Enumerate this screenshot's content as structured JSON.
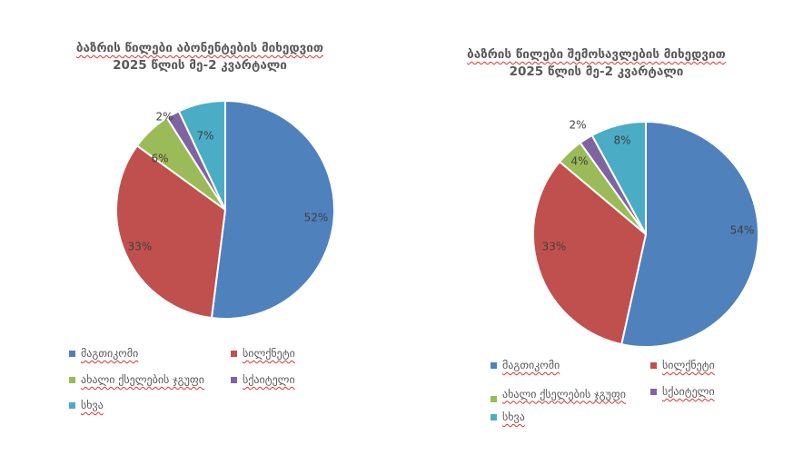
{
  "chart_data": [
    {
      "type": "pie",
      "title_lines": [
        "ბაზრის წილები აბონენტების მიხედვით",
        "2025 წლის მე-2 კვარტალი"
      ],
      "categories": [
        "მაგთიკომი",
        "სილქნეტი",
        "ახალი ქსელების ჯგუფი",
        "სქაიტელი",
        "სხვა"
      ],
      "values": [
        52,
        33,
        6,
        2,
        7
      ],
      "labels": [
        "52%",
        "33%",
        "6%",
        "2%",
        "7%"
      ],
      "colors": [
        "#4F81BD",
        "#C0504D",
        "#9BBB59",
        "#8064A2",
        "#4BACC6"
      ],
      "legend_position": "bottom"
    },
    {
      "type": "pie",
      "title_lines": [
        "ბაზრის წილები შემოსავლების მიხედვით",
        "2025 წლის მე-2 კვარტალი"
      ],
      "categories": [
        "მაგთიკომი",
        "სილქნეტი",
        "ახალი ქსელების ჯგუფი",
        "სქაიტელი",
        "სხვა"
      ],
      "values": [
        54,
        33,
        4,
        2,
        8
      ],
      "labels": [
        "54%",
        "33%",
        "4%",
        "2%",
        "8%"
      ],
      "colors": [
        "#4F81BD",
        "#C0504D",
        "#9BBB59",
        "#8064A2",
        "#4BACC6"
      ],
      "legend_position": "bottom"
    }
  ]
}
